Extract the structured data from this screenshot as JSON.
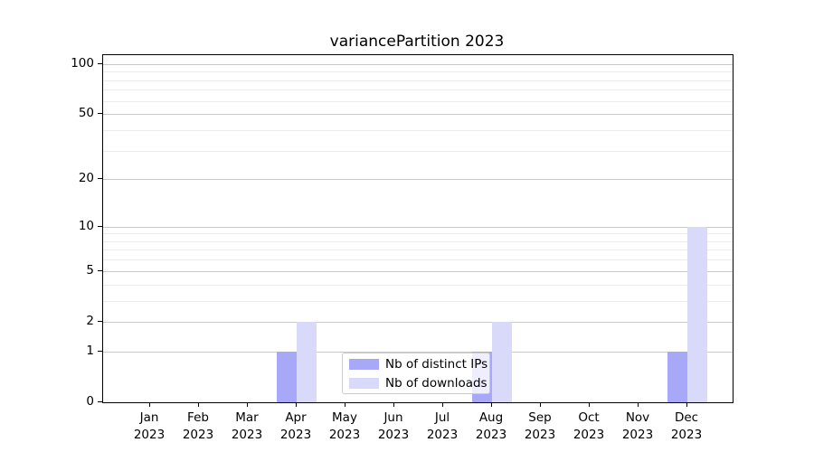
{
  "title": "variancePartition 2023",
  "legend": {
    "entries": [
      {
        "label": "Nb of distinct IPs",
        "color": "#a8a8f8"
      },
      {
        "label": "Nb of downloads",
        "color": "#d9d9fa"
      }
    ]
  },
  "axes": {
    "y_tick_labels": [
      "0",
      "1",
      "2",
      "5",
      "10",
      "20",
      "50",
      "100"
    ],
    "x_tick_year": "2023",
    "x_tick_months": [
      "Jan",
      "Feb",
      "Mar",
      "Apr",
      "May",
      "Jun",
      "Jul",
      "Aug",
      "Sep",
      "Oct",
      "Nov",
      "Dec"
    ]
  },
  "colors": {
    "distinct_ips_bar": "#a8a8f8",
    "downloads_bar": "#d9d9fa",
    "major_grid": "#c9c9c9",
    "minor_grid": "#ebebeb",
    "spine": "#000000",
    "legend_border": "#cccccc"
  },
  "chart_data": {
    "type": "bar",
    "title": "variancePartition 2023",
    "categories": [
      "Jan 2023",
      "Feb 2023",
      "Mar 2023",
      "Apr 2023",
      "May 2023",
      "Jun 2023",
      "Jul 2023",
      "Aug 2023",
      "Sep 2023",
      "Oct 2023",
      "Nov 2023",
      "Dec 2023"
    ],
    "series": [
      {
        "name": "Nb of distinct IPs",
        "color": "#a8a8f8",
        "values": [
          0,
          0,
          0,
          1,
          0,
          0,
          0,
          1,
          0,
          0,
          0,
          1
        ]
      },
      {
        "name": "Nb of downloads",
        "color": "#d9d9fa",
        "values": [
          0,
          0,
          0,
          2,
          0,
          0,
          0,
          2,
          0,
          0,
          0,
          10
        ]
      }
    ],
    "xlabel": "",
    "ylabel": "",
    "yscale": "log1p",
    "ylim": [
      0,
      113
    ],
    "yticks": [
      0,
      1,
      2,
      5,
      10,
      20,
      50,
      100
    ],
    "minor_yticks": [
      3,
      4,
      6,
      7,
      8,
      9,
      30,
      40,
      60,
      70,
      80,
      90
    ],
    "grid": true,
    "legend_position": "lower center inside"
  }
}
